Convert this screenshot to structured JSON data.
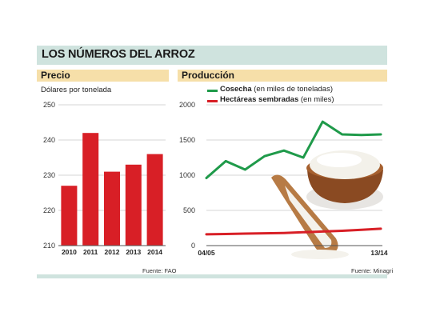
{
  "header": {
    "title": "LOS NÚMEROS DEL ARROZ"
  },
  "left_panel": {
    "title": "Precio",
    "subtitle": "Dólares por tonelada",
    "source": "Fuente: FAO"
  },
  "right_panel": {
    "title": "Producción",
    "legend": [
      {
        "name": "Cosecha",
        "note": "(en miles de toneladas)",
        "color": "#1f9a4a"
      },
      {
        "name": "Hectáreas sembradas",
        "note": "(en miles)",
        "color": "#d81f26"
      }
    ],
    "source": "Fuente: Minagri",
    "image": "rice-bowl-and-scoop"
  },
  "chart_data": [
    {
      "type": "bar",
      "title": "Precio",
      "ylabel": "Dólares por tonelada",
      "categories": [
        "2010",
        "2011",
        "2012",
        "2013",
        "2014"
      ],
      "values": [
        227,
        242,
        231,
        233,
        236
      ],
      "ylim": [
        210,
        250
      ],
      "yticks": [
        "250",
        "240",
        "230",
        "220",
        "210"
      ],
      "bar_color": "#d81f26",
      "grid": true
    },
    {
      "type": "line",
      "title": "Producción",
      "x_labels": [
        "04/05",
        "13/14"
      ],
      "ylim": [
        0,
        2000
      ],
      "yticks": [
        "2000",
        "1500",
        "1000",
        "500",
        "0"
      ],
      "grid": true,
      "series": [
        {
          "name": "Cosecha",
          "color": "#1f9a4a",
          "values": [
            960,
            1200,
            1080,
            1270,
            1350,
            1250,
            1760,
            1580,
            1570,
            1580
          ]
        },
        {
          "name": "Hectáreas sembradas",
          "color": "#d81f26",
          "values": [
            160,
            165,
            170,
            175,
            180,
            190,
            200,
            210,
            225,
            240
          ]
        }
      ]
    }
  ]
}
